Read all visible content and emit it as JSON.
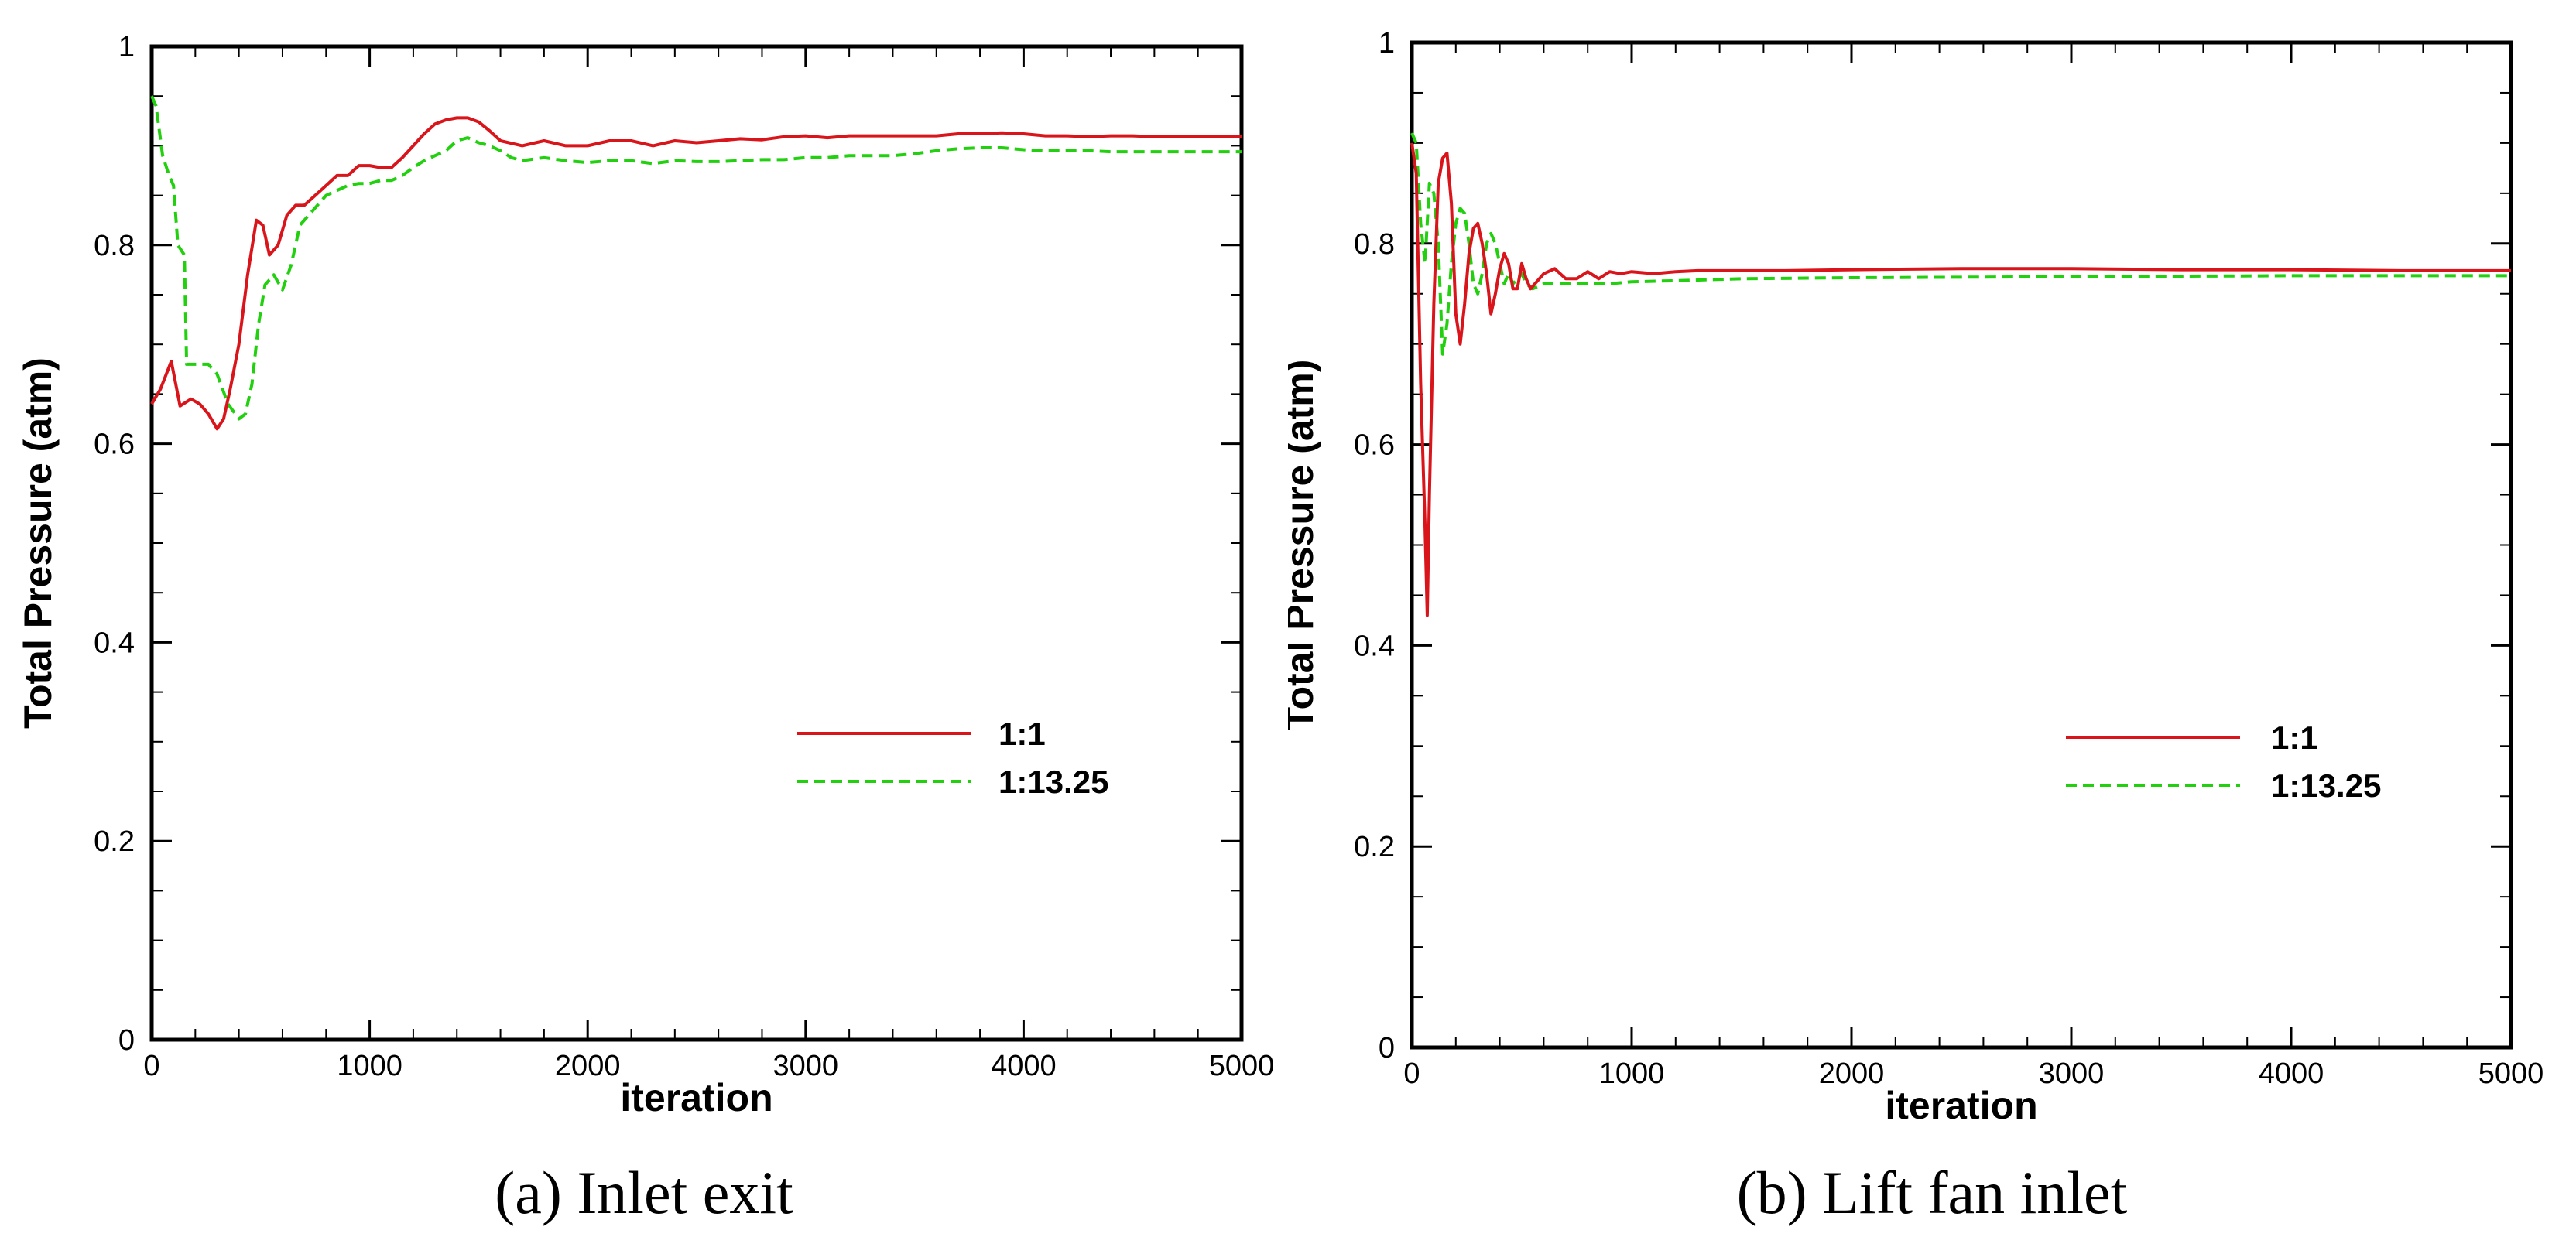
{
  "chart_data": [
    {
      "type": "line",
      "caption": "(a) Inlet exit",
      "xlabel": "iteration",
      "ylabel": "Total Pressure (atm)",
      "xlim": [
        0,
        5000
      ],
      "ylim": [
        0,
        1
      ],
      "x_ticks": [
        0,
        1000,
        2000,
        3000,
        4000,
        5000
      ],
      "y_ticks": [
        0,
        0.2,
        0.4,
        0.6,
        0.8,
        1
      ],
      "x_tick_labels": [
        "0",
        "1000",
        "2000",
        "3000",
        "4000",
        "5000"
      ],
      "y_tick_labels": [
        "0",
        "0.2",
        "0.4",
        "0.6",
        "0.8",
        "1"
      ],
      "legend_position": "lower-right",
      "series": [
        {
          "name": "1:1",
          "color": "#d9151b",
          "style": "solid",
          "x": [
            0,
            40,
            90,
            130,
            180,
            220,
            260,
            300,
            330,
            360,
            400,
            440,
            480,
            510,
            540,
            580,
            620,
            660,
            700,
            750,
            800,
            850,
            900,
            950,
            1000,
            1050,
            1100,
            1150,
            1200,
            1250,
            1300,
            1350,
            1400,
            1450,
            1500,
            1550,
            1600,
            1700,
            1800,
            1900,
            2000,
            2100,
            2200,
            2300,
            2400,
            2500,
            2600,
            2700,
            2800,
            2900,
            3000,
            3100,
            3200,
            3300,
            3400,
            3500,
            3600,
            3700,
            3800,
            3900,
            4000,
            4100,
            4200,
            4300,
            4400,
            4500,
            4600,
            4700,
            4800,
            4900,
            5000
          ],
          "values": [
            0.64,
            0.655,
            0.683,
            0.638,
            0.645,
            0.64,
            0.63,
            0.615,
            0.625,
            0.655,
            0.7,
            0.77,
            0.825,
            0.82,
            0.79,
            0.8,
            0.83,
            0.84,
            0.84,
            0.85,
            0.86,
            0.87,
            0.87,
            0.88,
            0.88,
            0.878,
            0.878,
            0.888,
            0.9,
            0.912,
            0.922,
            0.926,
            0.928,
            0.928,
            0.924,
            0.915,
            0.905,
            0.9,
            0.905,
            0.9,
            0.9,
            0.905,
            0.905,
            0.9,
            0.905,
            0.903,
            0.905,
            0.907,
            0.906,
            0.909,
            0.91,
            0.908,
            0.91,
            0.91,
            0.91,
            0.91,
            0.91,
            0.912,
            0.912,
            0.913,
            0.912,
            0.91,
            0.91,
            0.909,
            0.91,
            0.91,
            0.909,
            0.909,
            0.909,
            0.909,
            0.909
          ]
        },
        {
          "name": "1:13.25",
          "color": "#22d010",
          "style": "dashed",
          "x": [
            0,
            20,
            50,
            80,
            100,
            120,
            150,
            160,
            180,
            220,
            260,
            300,
            350,
            400,
            430,
            460,
            490,
            520,
            560,
            600,
            640,
            680,
            720,
            760,
            800,
            850,
            900,
            950,
            1000,
            1050,
            1100,
            1150,
            1200,
            1250,
            1300,
            1350,
            1400,
            1450,
            1500,
            1550,
            1600,
            1650,
            1700,
            1800,
            1900,
            2000,
            2100,
            2200,
            2300,
            2400,
            2500,
            2600,
            2700,
            2800,
            2900,
            3000,
            3100,
            3200,
            3300,
            3400,
            3500,
            3600,
            3700,
            3800,
            3900,
            4000,
            4100,
            4200,
            4300,
            4400,
            4500,
            4600,
            4700,
            4800,
            4900,
            5000
          ],
          "values": [
            0.95,
            0.94,
            0.89,
            0.87,
            0.86,
            0.8,
            0.79,
            0.68,
            0.68,
            0.68,
            0.68,
            0.67,
            0.64,
            0.625,
            0.63,
            0.66,
            0.72,
            0.76,
            0.77,
            0.755,
            0.78,
            0.82,
            0.83,
            0.84,
            0.85,
            0.855,
            0.86,
            0.862,
            0.862,
            0.865,
            0.865,
            0.87,
            0.878,
            0.885,
            0.89,
            0.895,
            0.905,
            0.908,
            0.903,
            0.9,
            0.895,
            0.888,
            0.885,
            0.888,
            0.885,
            0.883,
            0.885,
            0.885,
            0.882,
            0.885,
            0.884,
            0.884,
            0.885,
            0.886,
            0.886,
            0.888,
            0.888,
            0.89,
            0.89,
            0.89,
            0.892,
            0.895,
            0.897,
            0.898,
            0.898,
            0.896,
            0.895,
            0.895,
            0.895,
            0.894,
            0.894,
            0.894,
            0.894,
            0.894,
            0.894,
            0.894
          ]
        }
      ]
    },
    {
      "type": "line",
      "caption": "(b) Lift fan inlet",
      "xlabel": "iteration",
      "ylabel": "Total Pressure (atm)",
      "xlim": [
        0,
        5000
      ],
      "ylim": [
        0,
        1
      ],
      "x_ticks": [
        0,
        1000,
        2000,
        3000,
        4000,
        5000
      ],
      "y_ticks": [
        0,
        0.2,
        0.4,
        0.6,
        0.8,
        1
      ],
      "x_tick_labels": [
        "0",
        "1000",
        "2000",
        "3000",
        "4000",
        "5000"
      ],
      "y_tick_labels": [
        "0",
        "0.2",
        "0.4",
        "0.6",
        "0.8",
        "1"
      ],
      "legend_position": "lower-right",
      "series": [
        {
          "name": "1:1",
          "color": "#d9151b",
          "style": "solid",
          "x": [
            0,
            20,
            40,
            60,
            70,
            80,
            100,
            120,
            140,
            160,
            180,
            200,
            220,
            240,
            260,
            280,
            300,
            320,
            340,
            360,
            380,
            400,
            420,
            440,
            460,
            480,
            500,
            520,
            540,
            560,
            580,
            600,
            650,
            700,
            750,
            800,
            850,
            900,
            950,
            1000,
            1100,
            1200,
            1300,
            1400,
            1500,
            1700,
            2000,
            2500,
            3000,
            3500,
            4000,
            4500,
            5000
          ],
          "values": [
            0.9,
            0.87,
            0.66,
            0.52,
            0.43,
            0.55,
            0.74,
            0.86,
            0.885,
            0.89,
            0.84,
            0.73,
            0.7,
            0.74,
            0.79,
            0.815,
            0.82,
            0.8,
            0.77,
            0.73,
            0.75,
            0.775,
            0.79,
            0.78,
            0.755,
            0.755,
            0.78,
            0.765,
            0.755,
            0.76,
            0.765,
            0.77,
            0.775,
            0.765,
            0.765,
            0.772,
            0.765,
            0.772,
            0.77,
            0.772,
            0.77,
            0.772,
            0.773,
            0.773,
            0.773,
            0.773,
            0.774,
            0.775,
            0.775,
            0.774,
            0.774,
            0.773,
            0.773
          ]
        },
        {
          "name": "1:13.25",
          "color": "#22d010",
          "style": "dashed",
          "x": [
            0,
            20,
            40,
            60,
            80,
            100,
            120,
            140,
            160,
            180,
            200,
            220,
            240,
            260,
            280,
            300,
            320,
            340,
            360,
            380,
            400,
            420,
            440,
            460,
            480,
            500,
            520,
            550,
            600,
            650,
            700,
            800,
            900,
            1000,
            1200,
            1500,
            2000,
            3000,
            4000,
            5000
          ],
          "values": [
            0.91,
            0.9,
            0.82,
            0.78,
            0.86,
            0.85,
            0.8,
            0.69,
            0.72,
            0.78,
            0.82,
            0.835,
            0.83,
            0.8,
            0.76,
            0.75,
            0.77,
            0.8,
            0.81,
            0.8,
            0.78,
            0.76,
            0.77,
            0.76,
            0.765,
            0.77,
            0.76,
            0.755,
            0.76,
            0.76,
            0.76,
            0.76,
            0.76,
            0.762,
            0.763,
            0.765,
            0.766,
            0.767,
            0.768,
            0.768
          ]
        }
      ]
    }
  ]
}
